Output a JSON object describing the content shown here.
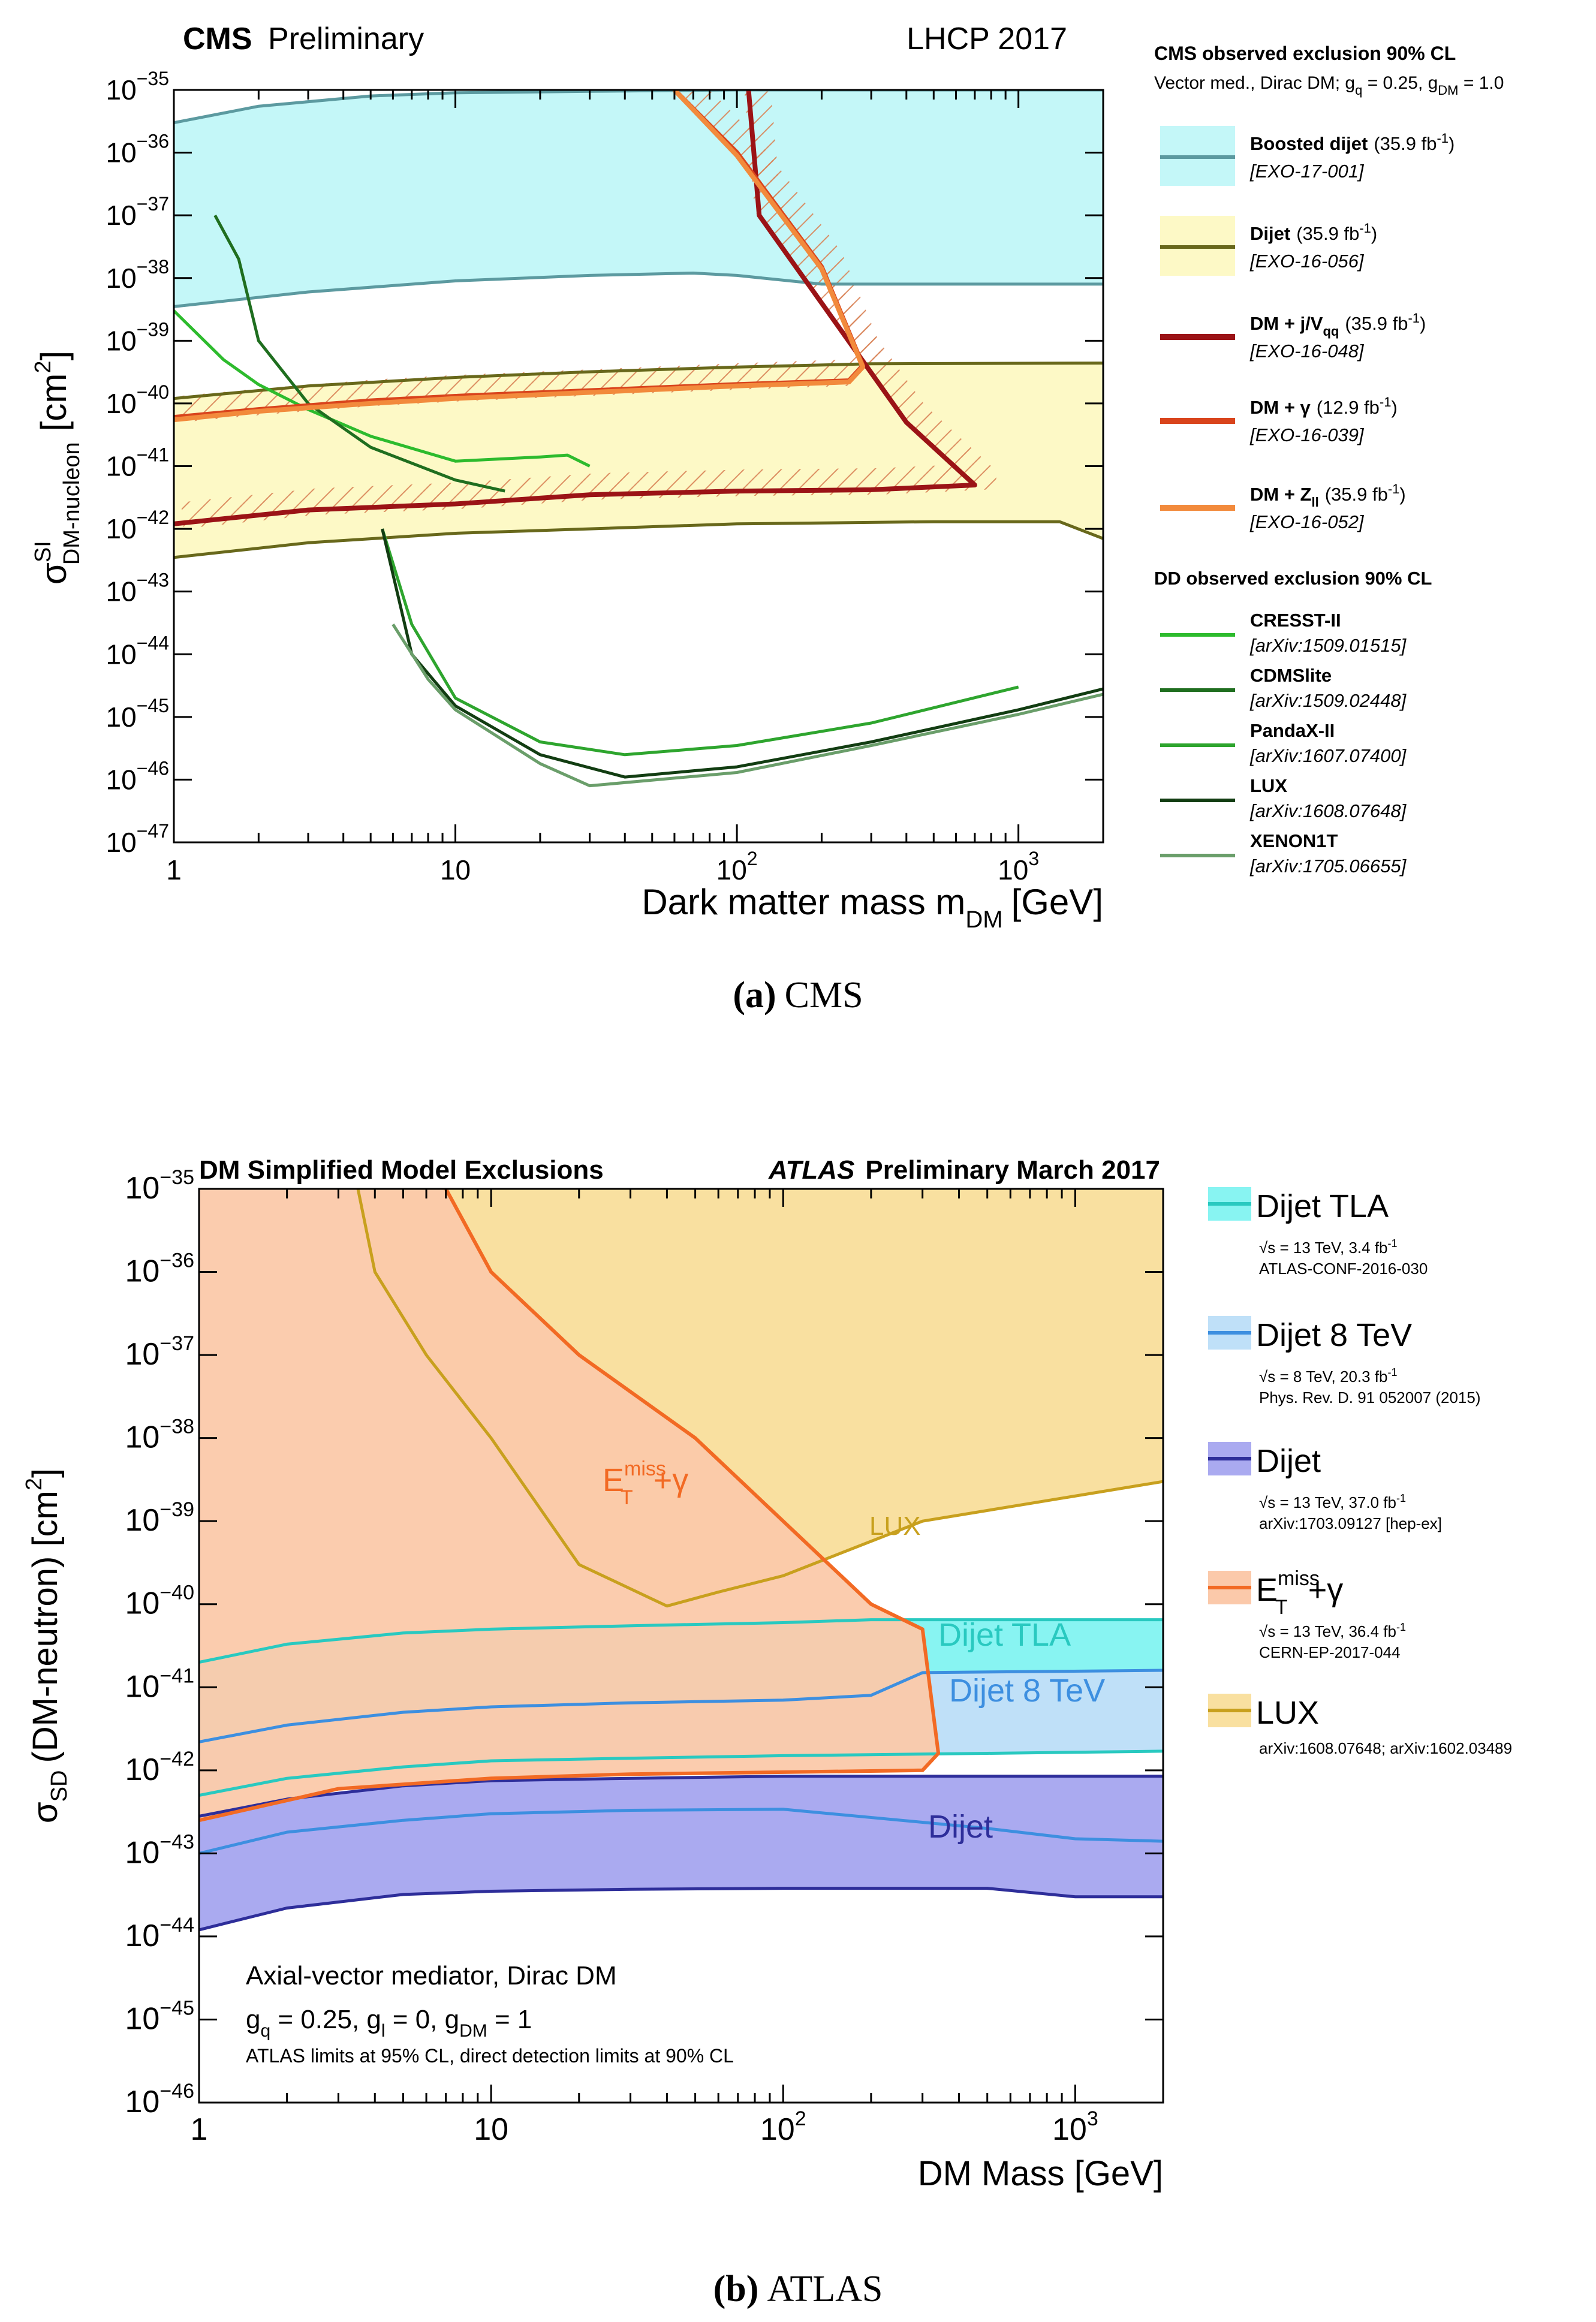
{
  "cms": {
    "header_bold": "CMS",
    "header_rest": "Preliminary",
    "header_right": "LHCP 2017",
    "ylabel_main": "σ",
    "ylabel_sup": "SI",
    "ylabel_sub": "DM-nucleon",
    "ylabel_unit": "[cm",
    "ylabel_unit_exp": "2",
    "ylabel_unit_close": "]",
    "xlabel_main": "Dark matter mass m",
    "xlabel_sub": "DM",
    "xlabel_unit": "[GeV]",
    "caption_letter": "(a)",
    "caption_text": "CMS",
    "legend_title": "CMS observed exclusion 90% CL",
    "legend_subtitle": "Vector med., Dirac DM; g",
    "legend_subtitle_sub1": "q",
    "legend_subtitle_mid": " = 0.25, g",
    "legend_subtitle_sub2": "DM",
    "legend_subtitle_end": " = 1.0",
    "dd_title": "DD observed exclusion 90% CL",
    "entries": [
      {
        "name": "Boosted dijet",
        "lumi": "(35.9 fb",
        "ref": "[EXO-17-001]",
        "color": "#5c9aa0",
        "fill": "#c4f7f8"
      },
      {
        "name": "Dijet",
        "lumi": "(35.9 fb",
        "ref": "[EXO-16-056]",
        "color": "#68681b",
        "fill": "#fdf9c6"
      },
      {
        "name": "DM + j/V",
        "name_sub": "qq",
        "lumi": "(35.9 fb",
        "ref": "[EXO-16-048]",
        "color": "#9b1316"
      },
      {
        "name": "DM + γ",
        "lumi": "(12.9 fb",
        "ref": "[EXO-16-039]",
        "color": "#d9441c"
      },
      {
        "name": "DM + Z",
        "name_sub": "ll",
        "lumi": "(35.9 fb",
        "ref": "[EXO-16-052]",
        "color": "#f28a3c"
      }
    ],
    "dd_entries": [
      {
        "name": "CRESST-II",
        "ref": "[arXiv:1509.01515]",
        "color": "#2dbb2d"
      },
      {
        "name": "CDMSlite",
        "ref": "[arXiv:1509.02448]",
        "color": "#1f6e1f"
      },
      {
        "name": "PandaX-II",
        "ref": "[arXiv:1607.07400]",
        "color": "#2ea52e"
      },
      {
        "name": "LUX",
        "ref": "[arXiv:1608.07648]",
        "color": "#123d12"
      },
      {
        "name": "XENON1T",
        "ref": "[arXiv:1705.06655]",
        "color": "#6a9e6a"
      }
    ],
    "fb_exp": "-1",
    "fb_close": ")",
    "x_ticks": [
      {
        "v": 1,
        "m": "1",
        "e": ""
      },
      {
        "v": 10,
        "m": "10",
        "e": ""
      },
      {
        "v": 100,
        "m": "10",
        "e": "2"
      },
      {
        "v": 1000,
        "m": "10",
        "e": "3"
      }
    ],
    "y_ticks": [
      {
        "e": -35,
        "label": "10",
        "exp": "−35"
      },
      {
        "e": -36,
        "label": "10",
        "exp": "−36"
      },
      {
        "e": -37,
        "label": "10",
        "exp": "−37"
      },
      {
        "e": -38,
        "label": "10",
        "exp": "−38"
      },
      {
        "e": -39,
        "label": "10",
        "exp": "−39"
      },
      {
        "e": -40,
        "label": "10",
        "exp": "−40"
      },
      {
        "e": -41,
        "label": "10",
        "exp": "−41"
      },
      {
        "e": -42,
        "label": "10",
        "exp": "−42"
      },
      {
        "e": -43,
        "label": "10",
        "exp": "−43"
      },
      {
        "e": -44,
        "label": "10",
        "exp": "−44"
      },
      {
        "e": -45,
        "label": "10",
        "exp": "−45"
      },
      {
        "e": -46,
        "label": "10",
        "exp": "−46"
      },
      {
        "e": -47,
        "label": "10",
        "exp": "−47"
      }
    ]
  },
  "atlas": {
    "header_left": "DM Simplified Model Exclusions",
    "header_atlas": "ATLAS",
    "header_right": "Preliminary March 2017",
    "ylabel_main": "σ",
    "ylabel_sub": "SD",
    "ylabel_rest": "(DM-neutron) [cm",
    "ylabel_exp": "2",
    "ylabel_close": "]",
    "xlabel": "DM Mass [GeV]",
    "caption_letter": "(b)",
    "caption_text": "ATLAS",
    "note_line1": "Axial-vector mediator, Dirac DM",
    "note_line2_a": "g",
    "note_line2_sub_q": "q",
    "note_line2_b": " = 0.25, g",
    "note_line2_sub_l": "l",
    "note_line2_c": " = 0, g",
    "note_line2_sub_dm": "DM",
    "note_line2_d": " = 1",
    "note_line3": "ATLAS limits at 95% CL, direct detection limits at 90% CL",
    "curve_labels": {
      "et_main": "E",
      "et_sup": "miss",
      "et_sub": "T",
      "et_rest": "+γ",
      "lux": "LUX",
      "dijet_tla": "Dijet TLA",
      "dijet_8": "Dijet 8 TeV",
      "dijet": "Dijet"
    },
    "legend": [
      {
        "name": "Dijet TLA",
        "line1": "s = 13 TeV, 3.4 fb",
        "line2": "ATLAS-CONF-2016-030",
        "color": "#29c9c0",
        "fill": "#88f4f2"
      },
      {
        "name": "Dijet 8 TeV",
        "line1": "s = 8 TeV, 20.3 fb",
        "line2": "Phys. Rev. D. 91 052007 (2015)",
        "color": "#3d8fe0",
        "fill": "#bfe0f8"
      },
      {
        "name": "Dijet",
        "line1": "s = 13 TeV, 37.0 fb",
        "line2": "arXiv:1703.09127 [hep-ex]",
        "color": "#2e2e9a",
        "fill": "#aaaaf0"
      },
      {
        "name": "E",
        "name_sup": "miss",
        "name_sub": "T",
        "name_rest": "+γ",
        "line1": "s = 13 TeV, 36.4 fb",
        "line2": "CERN-EP-2017-044",
        "color": "#f26a24",
        "fill": "#fbc9aa"
      },
      {
        "name": "LUX",
        "line1": "arXiv:1608.07648; arXiv:1602.03489",
        "color": "#c8a01e",
        "fill": "#f9e0a0"
      }
    ],
    "fb_exp": "-1",
    "x_ticks": [
      {
        "v": 1,
        "m": "1",
        "e": ""
      },
      {
        "v": 10,
        "m": "10",
        "e": ""
      },
      {
        "v": 100,
        "m": "10",
        "e": "2"
      },
      {
        "v": 1000,
        "m": "10",
        "e": "3"
      }
    ],
    "y_ticks": [
      {
        "e": -35,
        "label": "10",
        "exp": "−35"
      },
      {
        "e": -36,
        "label": "10",
        "exp": "−36"
      },
      {
        "e": -37,
        "label": "10",
        "exp": "−37"
      },
      {
        "e": -38,
        "label": "10",
        "exp": "−38"
      },
      {
        "e": -39,
        "label": "10",
        "exp": "−39"
      },
      {
        "e": -40,
        "label": "10",
        "exp": "−40"
      },
      {
        "e": -41,
        "label": "10",
        "exp": "−41"
      },
      {
        "e": -42,
        "label": "10",
        "exp": "−42"
      },
      {
        "e": -43,
        "label": "10",
        "exp": "−43"
      },
      {
        "e": -44,
        "label": "10",
        "exp": "−44"
      },
      {
        "e": -45,
        "label": "10",
        "exp": "−45"
      },
      {
        "e": -46,
        "label": "10",
        "exp": "−46"
      }
    ]
  },
  "chart_data": [
    {
      "type": "line",
      "title": "CMS Preliminary LHCP 2017",
      "xlabel": "Dark matter mass m_DM [GeV]",
      "ylabel": "σ^SI_DM-nucleon [cm^2]",
      "xscale": "log",
      "yscale": "log",
      "xlim": [
        1,
        2000
      ],
      "ylim": [
        1e-47,
        1e-35
      ],
      "series": [
        {
          "name": "Boosted dijet upper",
          "x": [
            1,
            2,
            5,
            10,
            30,
            100,
            300,
            2000
          ],
          "y": [
            3e-36,
            5.5e-36,
            8e-36,
            9e-36,
            9.5e-36,
            1e-35,
            1e-35,
            1e-35
          ]
        },
        {
          "name": "Boosted dijet lower",
          "x": [
            1,
            3,
            10,
            30,
            70,
            100,
            200,
            2000
          ],
          "y": [
            3.5e-39,
            6e-39,
            9e-39,
            1.1e-38,
            1.2e-38,
            1.1e-38,
            8e-39,
            8e-39
          ]
        },
        {
          "name": "Dijet upper",
          "x": [
            1,
            3,
            10,
            30,
            100,
            300,
            2000
          ],
          "y": [
            1.2e-40,
            1.9e-40,
            2.6e-40,
            3.2e-40,
            3.8e-40,
            4.3e-40,
            4.4e-40
          ]
        },
        {
          "name": "Dijet lower",
          "x": [
            1,
            3,
            10,
            30,
            100,
            500,
            1400,
            2000
          ],
          "y": [
            3.5e-43,
            6e-43,
            8.5e-43,
            1e-42,
            1.2e-42,
            1.3e-42,
            1.3e-42,
            7e-43
          ]
        },
        {
          "name": "DM + j/Vqq",
          "x": [
            1,
            3,
            10,
            30,
            100,
            300,
            700,
            400,
            200,
            120,
            110
          ],
          "y": [
            1.2e-42,
            2e-42,
            2.5e-42,
            3.5e-42,
            4e-42,
            4.2e-42,
            5e-42,
            5e-41,
            4e-39,
            1e-37,
            1e-35
          ]
        },
        {
          "name": "DM + γ",
          "x": [
            1,
            2,
            5,
            10,
            30,
            100,
            250,
            280,
            200,
            100,
            60
          ],
          "y": [
            6e-41,
            8e-41,
            1.1e-40,
            1.3e-40,
            1.6e-40,
            2e-40,
            2.3e-40,
            4e-40,
            1.5e-38,
            1e-36,
            1e-35
          ]
        },
        {
          "name": "DM + Zll",
          "x": [
            1,
            2,
            5,
            10,
            30,
            100,
            250,
            280,
            200,
            100,
            60
          ],
          "y": [
            5.5e-41,
            7.5e-41,
            1e-40,
            1.2e-40,
            1.5e-40,
            1.9e-40,
            2.2e-40,
            3.8e-40,
            1.4e-38,
            9e-37,
            1e-35
          ]
        },
        {
          "name": "CRESST-II",
          "x": [
            1,
            1.5,
            2,
            3,
            5,
            10,
            20,
            25,
            30
          ],
          "y": [
            3e-39,
            5e-40,
            2e-40,
            8e-41,
            3e-41,
            1.2e-41,
            1.4e-41,
            1.5e-41,
            1e-41
          ]
        },
        {
          "name": "CDMSlite",
          "x": [
            1.4,
            1.7,
            2,
            3,
            5,
            10,
            15
          ],
          "y": [
            1e-37,
            2e-38,
            1e-39,
            1e-40,
            2e-41,
            6e-42,
            4e-42
          ]
        },
        {
          "name": "PandaX-II",
          "x": [
            5.5,
            7,
            10,
            20,
            40,
            100,
            300,
            1000
          ],
          "y": [
            1e-42,
            3e-44,
            2e-45,
            4e-46,
            2.5e-46,
            3.5e-46,
            8e-46,
            3e-45
          ]
        },
        {
          "name": "LUX",
          "x": [
            5.5,
            7,
            10,
            20,
            40,
            100,
            300,
            1000,
            2000
          ],
          "y": [
            1e-42,
            1e-44,
            1.5e-45,
            2.5e-46,
            1.1e-46,
            1.6e-46,
            4e-46,
            1.3e-45,
            2.8e-45
          ]
        },
        {
          "name": "XENON1T",
          "x": [
            6,
            8,
            10,
            20,
            30,
            100,
            300,
            1000,
            2000
          ],
          "y": [
            3e-44,
            4e-45,
            1.3e-45,
            1.8e-46,
            8e-47,
            1.3e-46,
            3.5e-46,
            1.1e-45,
            2.3e-45
          ]
        }
      ]
    },
    {
      "type": "line",
      "title": "DM Simplified Model Exclusions — ATLAS Preliminary March 2017",
      "xlabel": "DM Mass [GeV]",
      "ylabel": "σ_SD (DM-neutron) [cm^2]",
      "xscale": "log",
      "yscale": "log",
      "xlim": [
        1,
        2000
      ],
      "ylim": [
        1e-46,
        1e-35
      ],
      "series": [
        {
          "name": "Dijet TLA upper",
          "x": [
            1,
            2,
            5,
            10,
            30,
            100,
            200,
            2000
          ],
          "y": [
            2e-41,
            3.3e-41,
            4.5e-41,
            5e-41,
            5.5e-41,
            6e-41,
            6.5e-41,
            6.5e-41
          ]
        },
        {
          "name": "Dijet TLA lower",
          "x": [
            1,
            2,
            5,
            10,
            30,
            100,
            500,
            2000
          ],
          "y": [
            5e-43,
            8e-43,
            1.1e-42,
            1.3e-42,
            1.4e-42,
            1.5e-42,
            1.6e-42,
            1.7e-42
          ]
        },
        {
          "name": "Dijet 8 TeV upper",
          "x": [
            1,
            2,
            5,
            10,
            30,
            100,
            200,
            300,
            2000
          ],
          "y": [
            2.2e-42,
            3.5e-42,
            5e-42,
            5.8e-42,
            6.5e-42,
            7e-42,
            8e-42,
            1.5e-41,
            1.6e-41
          ]
        },
        {
          "name": "Dijet upper",
          "x": [
            1,
            2,
            5,
            10,
            30,
            100,
            2000
          ],
          "y": [
            2.8e-43,
            4.5e-43,
            6.5e-43,
            7.5e-43,
            8e-43,
            8.5e-43,
            8.5e-43
          ]
        },
        {
          "name": "Dijet lower",
          "x": [
            1,
            2,
            5,
            10,
            30,
            100,
            500,
            1000,
            2000
          ],
          "y": [
            1.2e-44,
            2.2e-44,
            3.2e-44,
            3.5e-44,
            3.7e-44,
            3.8e-44,
            3.8e-44,
            3e-44,
            3e-44
          ]
        },
        {
          "name": "Dijet 8 TeV lower",
          "x": [
            1,
            2,
            5,
            10,
            30,
            100,
            500,
            1000,
            2000
          ],
          "y": [
            1e-43,
            1.8e-43,
            2.5e-43,
            3e-43,
            3.3e-43,
            3.4e-43,
            2e-43,
            1.5e-43,
            1.4e-43
          ]
        },
        {
          "name": "ETmiss+γ",
          "x": [
            1,
            3,
            10,
            30,
            100,
            300,
            340,
            300,
            200,
            100,
            50,
            20,
            10,
            7
          ],
          "y": [
            2.5e-43,
            6e-43,
            8e-43,
            9e-43,
            9.5e-43,
            1e-42,
            1.6e-42,
            5e-41,
            1e-40,
            1e-39,
            1e-38,
            1e-37,
            1e-36,
            1e-35
          ]
        },
        {
          "name": "LUX",
          "x": [
            3.5,
            4,
            6,
            10,
            20,
            40,
            60,
            100,
            300,
            2000
          ],
          "y": [
            1e-35,
            1e-36,
            1e-37,
            1e-38,
            3e-40,
            9.5e-41,
            1.4e-40,
            2.2e-40,
            1e-39,
            3e-39
          ]
        }
      ]
    }
  ]
}
